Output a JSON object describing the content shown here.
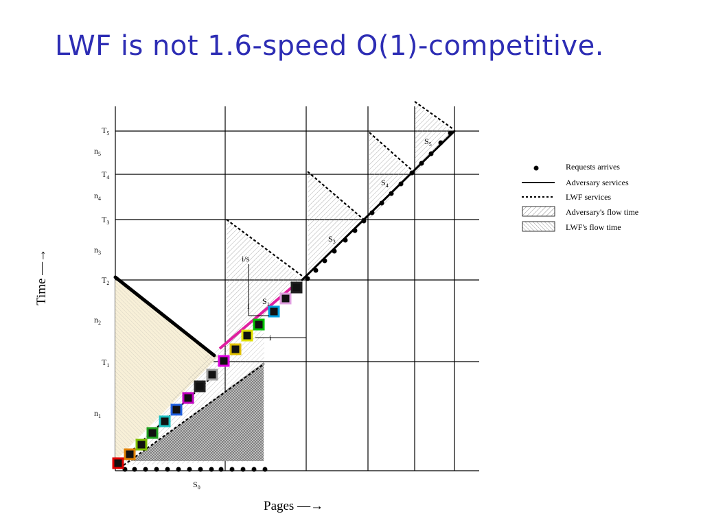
{
  "title": "LWF is not 1.6-speed O(1)-competitive.",
  "axes": {
    "x_label": "Pages —→",
    "y_label": "Time —→",
    "s0_label": "S",
    "s0_sub": "0"
  },
  "y_ticks": [
    {
      "main": "T",
      "sub": "5"
    },
    {
      "main": "n",
      "sub": "5"
    },
    {
      "main": "T",
      "sub": "4"
    },
    {
      "main": "n",
      "sub": "4"
    },
    {
      "main": "T",
      "sub": "3"
    },
    {
      "main": "n",
      "sub": "3"
    },
    {
      "main": "T",
      "sub": "2"
    },
    {
      "main": "n",
      "sub": "2"
    },
    {
      "main": "T",
      "sub": "1"
    },
    {
      "main": "n",
      "sub": "1"
    }
  ],
  "segment_labels": [
    {
      "main": "S",
      "sub": "1"
    },
    {
      "main": "S",
      "sub": "3"
    },
    {
      "main": "S",
      "sub": "4"
    },
    {
      "main": "S",
      "sub": "5"
    }
  ],
  "annotations": {
    "i_over_s": "i/s",
    "i_top": "i",
    "i_side": "i"
  },
  "legend": [
    {
      "key": "requests",
      "label": "Requests arrives"
    },
    {
      "key": "adversary",
      "label": "Adversary services"
    },
    {
      "key": "lwf",
      "label": "LWF services"
    },
    {
      "key": "adv_flow",
      "label": "Adversary's flow time"
    },
    {
      "key": "lwf_flow",
      "label": "LWF's flow time"
    }
  ],
  "colors": {
    "title": "#2d2db4",
    "highlight_line": "#e020a0",
    "left_fill": "#f8f0d8",
    "marker_borders": [
      "#e00000",
      "#e08000",
      "#80c000",
      "#20a020",
      "#20c0c0",
      "#2060e0",
      "#c000c0",
      "#202020",
      "#a0a0a0",
      "#e000e0",
      "#e0c000",
      "#e0e000",
      "#00c000",
      "#00a0e0",
      "#e0a0e0",
      "#202020",
      "#20c020"
    ]
  }
}
